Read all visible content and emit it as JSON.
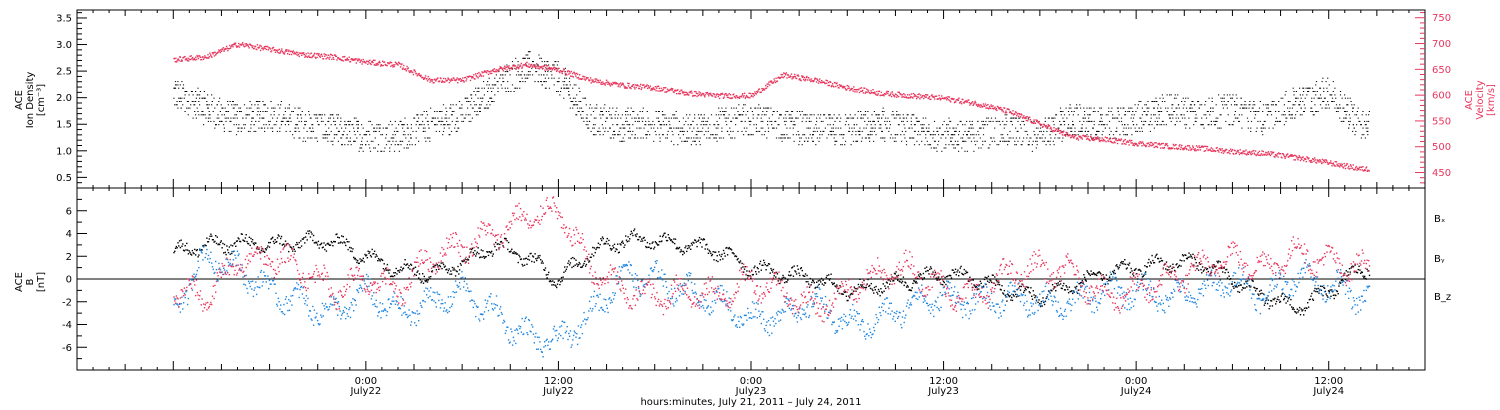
{
  "chart_data": [
    {
      "type": "scatter",
      "panel": "top",
      "ylabel": "ACE Ion Density [cm⁻³]",
      "ylabel_lines": [
        "ACE",
        "Ion Density",
        "[cm⁻³]"
      ],
      "ylabel2": "ACE Velocity [km/s]",
      "ylabel2_lines": [
        "ACE",
        "Velocity",
        "[km/s]"
      ],
      "ylim": [
        0.3,
        3.65
      ],
      "ylim2": [
        420,
        765
      ],
      "yticks": [
        0.5,
        1.0,
        1.5,
        2.0,
        2.5,
        3.0,
        3.5
      ],
      "yticks2": [
        450,
        500,
        550,
        600,
        650,
        700,
        750
      ],
      "series": [
        {
          "color": "#000000",
          "axis": "left",
          "x": [
            -12,
            -10,
            -8,
            -6,
            -4,
            -2,
            0,
            2,
            4,
            6,
            8,
            10,
            12,
            14,
            16,
            18,
            20,
            22,
            24,
            26,
            28,
            30,
            32,
            34,
            36,
            38,
            40,
            42,
            44,
            46,
            48,
            50,
            52,
            54,
            56,
            58,
            60,
            62
          ],
          "values": [
            2.1,
            1.8,
            1.6,
            1.7,
            1.5,
            1.4,
            1.3,
            1.3,
            1.5,
            1.7,
            2.2,
            2.6,
            2.4,
            1.6,
            1.5,
            1.5,
            1.4,
            1.5,
            1.6,
            1.5,
            1.4,
            1.4,
            1.5,
            1.4,
            1.3,
            1.3,
            1.4,
            1.3,
            1.6,
            1.5,
            1.6,
            1.8,
            1.7,
            1.8,
            1.6,
            1.9,
            2.1,
            1.5
          ]
        },
        {
          "color": "#e8365d",
          "axis": "right",
          "x": [
            -12,
            -10,
            -8,
            -6,
            -4,
            -2,
            0,
            2,
            4,
            6,
            8,
            10,
            12,
            14,
            16,
            18,
            20,
            22,
            24,
            26,
            28,
            30,
            32,
            34,
            36,
            38,
            40,
            42,
            44,
            46,
            48,
            50,
            52,
            54,
            56,
            58,
            60,
            62
          ],
          "values": [
            670,
            675,
            700,
            690,
            680,
            675,
            665,
            660,
            630,
            630,
            650,
            660,
            650,
            630,
            620,
            615,
            605,
            600,
            600,
            640,
            630,
            615,
            605,
            600,
            595,
            585,
            570,
            545,
            520,
            515,
            508,
            502,
            498,
            492,
            488,
            480,
            470,
            458
          ]
        }
      ]
    },
    {
      "type": "scatter",
      "panel": "bottom",
      "ylabel": "ACE B [nT]",
      "ylabel_lines": [
        "ACE",
        "B",
        "[nT]"
      ],
      "ylim": [
        -8,
        8
      ],
      "yticks": [
        -6,
        -4,
        -2,
        0,
        2,
        4,
        6
      ],
      "series": [
        {
          "name": "Bx",
          "color": "#000000",
          "x": [
            -12,
            -10,
            -8,
            -6,
            -4,
            -2,
            0,
            2,
            4,
            6,
            8,
            10,
            12,
            14,
            16,
            18,
            20,
            22,
            24,
            26,
            28,
            30,
            32,
            34,
            36,
            38,
            40,
            42,
            44,
            46,
            48,
            50,
            52,
            54,
            56,
            58,
            60,
            62
          ],
          "values": [
            2.5,
            3.0,
            3.2,
            3.0,
            3.3,
            3.4,
            2.0,
            1.0,
            0.5,
            1.5,
            3.0,
            2.0,
            0.0,
            2.5,
            3.5,
            3.5,
            3.0,
            2.5,
            1.0,
            0.5,
            0.0,
            -1.0,
            -0.5,
            0.0,
            0.5,
            0.0,
            -1.0,
            -1.5,
            -0.5,
            0.5,
            1.0,
            1.5,
            1.5,
            0.0,
            -1.5,
            -2.5,
            -1.0,
            1.0
          ]
        },
        {
          "name": "By",
          "color": "#1e86e0",
          "x": [
            -12,
            -10,
            -8,
            -6,
            -4,
            -2,
            0,
            2,
            4,
            6,
            8,
            10,
            12,
            14,
            16,
            18,
            20,
            22,
            24,
            26,
            28,
            30,
            32,
            34,
            36,
            38,
            40,
            42,
            44,
            46,
            48,
            50,
            52,
            54,
            56,
            58,
            60,
            62
          ],
          "values": [
            -2.5,
            2.0,
            1.0,
            -1.0,
            -2.0,
            -3.0,
            -1.0,
            -3.0,
            -2.0,
            -1.0,
            -3.0,
            -5.0,
            -5.5,
            -3.0,
            0.5,
            0.0,
            -1.0,
            -2.0,
            -3.5,
            -3.0,
            -2.0,
            -4.0,
            -3.5,
            -2.0,
            -1.5,
            -2.0,
            -1.5,
            -2.0,
            -2.0,
            -1.0,
            -1.0,
            -1.5,
            -1.0,
            0.0,
            -1.5,
            0.5,
            -0.5,
            -1.5
          ]
        },
        {
          "name": "Bz",
          "color": "#e8365d",
          "x": [
            -12,
            -10,
            -8,
            -6,
            -4,
            -2,
            0,
            2,
            4,
            6,
            8,
            10,
            12,
            14,
            16,
            18,
            20,
            22,
            24,
            26,
            28,
            30,
            32,
            34,
            36,
            38,
            40,
            42,
            44,
            46,
            48,
            50,
            52,
            54,
            56,
            58,
            60,
            62
          ],
          "values": [
            -1.0,
            -1.5,
            1.5,
            2.0,
            1.0,
            -1.0,
            0.0,
            -1.0,
            2.0,
            3.0,
            4.0,
            5.5,
            6.0,
            1.0,
            -1.0,
            -1.5,
            -1.0,
            -1.5,
            0.0,
            -1.0,
            -2.5,
            -1.0,
            0.5,
            1.0,
            -1.0,
            -1.5,
            0.5,
            1.0,
            0.5,
            -1.5,
            -1.0,
            0.0,
            1.0,
            2.0,
            1.0,
            2.5,
            1.5,
            1.0
          ]
        }
      ]
    }
  ],
  "x_axis": {
    "xlim": [
      -18,
      66
    ],
    "ticks": [
      {
        "value": 0,
        "label": "0:00",
        "sublabel": "July22"
      },
      {
        "value": 12,
        "label": "12:00",
        "sublabel": "July22"
      },
      {
        "value": 24,
        "label": "0:00",
        "sublabel": "July23"
      },
      {
        "value": 36,
        "label": "12:00",
        "sublabel": "July23"
      },
      {
        "value": 48,
        "label": "0:00",
        "sublabel": "July24"
      },
      {
        "value": 60,
        "label": "12:00",
        "sublabel": "July24"
      }
    ],
    "title": "hours:minutes, July 21, 2011 – July 24, 2011"
  },
  "legend": [
    "Bₓ",
    "Bᵧ",
    "B_z"
  ],
  "colors": {
    "density": "#000000",
    "velocity": "#e8365d",
    "bx": "#000000",
    "by": "#1e86e0",
    "bz": "#e8365d"
  }
}
